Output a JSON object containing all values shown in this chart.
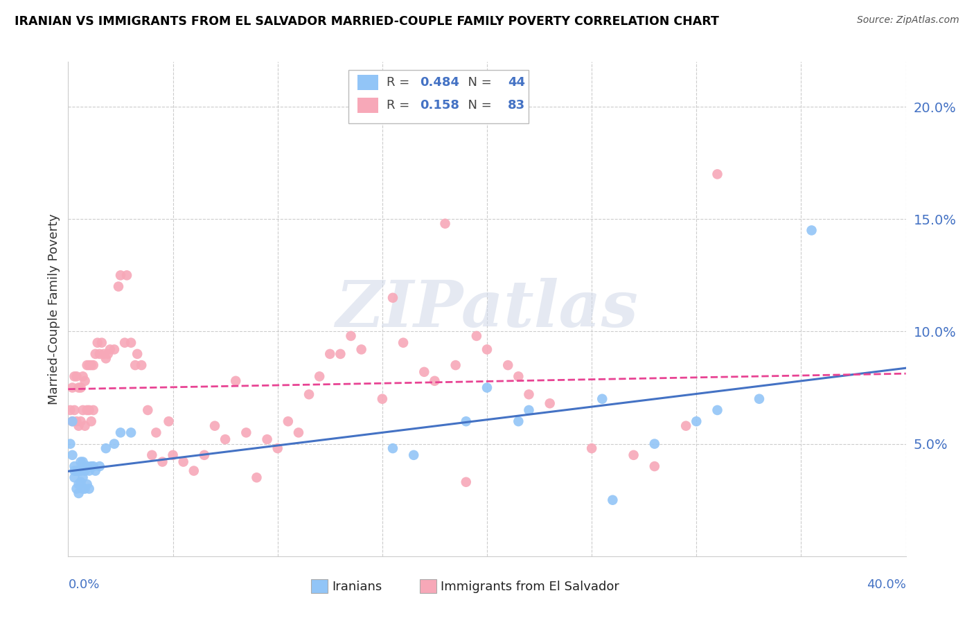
{
  "title": "IRANIAN VS IMMIGRANTS FROM EL SALVADOR MARRIED-COUPLE FAMILY POVERTY CORRELATION CHART",
  "source": "Source: ZipAtlas.com",
  "ylabel": "Married-Couple Family Poverty",
  "r1": "0.484",
  "n1": "44",
  "r2": "0.158",
  "n2": "83",
  "watermark": "ZIPatlas",
  "blue_color": "#92c5f7",
  "pink_color": "#f7a8b8",
  "blue_line_color": "#4472c4",
  "pink_line_color": "#e84393",
  "xmin": 0.0,
  "xmax": 0.4,
  "ymin": 0.0,
  "ymax": 0.22,
  "ytick_vals": [
    0.05,
    0.1,
    0.15,
    0.2
  ],
  "iranians_x": [
    0.001,
    0.002,
    0.002,
    0.003,
    0.003,
    0.003,
    0.004,
    0.004,
    0.005,
    0.005,
    0.005,
    0.006,
    0.006,
    0.006,
    0.007,
    0.007,
    0.007,
    0.008,
    0.008,
    0.009,
    0.009,
    0.01,
    0.01,
    0.011,
    0.012,
    0.013,
    0.015,
    0.018,
    0.022,
    0.025,
    0.03,
    0.155,
    0.165,
    0.19,
    0.2,
    0.215,
    0.22,
    0.255,
    0.26,
    0.28,
    0.3,
    0.31,
    0.33,
    0.355
  ],
  "iranians_y": [
    0.05,
    0.045,
    0.06,
    0.04,
    0.035,
    0.038,
    0.03,
    0.038,
    0.028,
    0.032,
    0.038,
    0.033,
    0.038,
    0.042,
    0.03,
    0.035,
    0.042,
    0.03,
    0.038,
    0.032,
    0.04,
    0.03,
    0.038,
    0.04,
    0.04,
    0.038,
    0.04,
    0.048,
    0.05,
    0.055,
    0.055,
    0.048,
    0.045,
    0.06,
    0.075,
    0.06,
    0.065,
    0.07,
    0.025,
    0.05,
    0.06,
    0.065,
    0.07,
    0.145
  ],
  "salvador_x": [
    0.001,
    0.002,
    0.002,
    0.003,
    0.003,
    0.004,
    0.004,
    0.005,
    0.005,
    0.006,
    0.006,
    0.007,
    0.007,
    0.008,
    0.008,
    0.009,
    0.009,
    0.01,
    0.01,
    0.011,
    0.011,
    0.012,
    0.012,
    0.013,
    0.014,
    0.015,
    0.016,
    0.017,
    0.018,
    0.019,
    0.02,
    0.022,
    0.024,
    0.025,
    0.027,
    0.028,
    0.03,
    0.032,
    0.033,
    0.035,
    0.038,
    0.04,
    0.042,
    0.045,
    0.048,
    0.05,
    0.055,
    0.06,
    0.065,
    0.07,
    0.075,
    0.08,
    0.085,
    0.09,
    0.095,
    0.1,
    0.105,
    0.11,
    0.115,
    0.12,
    0.125,
    0.13,
    0.135,
    0.14,
    0.15,
    0.155,
    0.16,
    0.17,
    0.175,
    0.18,
    0.185,
    0.19,
    0.195,
    0.2,
    0.21,
    0.215,
    0.22,
    0.23,
    0.25,
    0.27,
    0.28,
    0.295,
    0.31
  ],
  "salvador_y": [
    0.065,
    0.06,
    0.075,
    0.065,
    0.08,
    0.06,
    0.08,
    0.058,
    0.075,
    0.06,
    0.075,
    0.065,
    0.08,
    0.058,
    0.078,
    0.065,
    0.085,
    0.065,
    0.085,
    0.06,
    0.085,
    0.065,
    0.085,
    0.09,
    0.095,
    0.09,
    0.095,
    0.09,
    0.088,
    0.09,
    0.092,
    0.092,
    0.12,
    0.125,
    0.095,
    0.125,
    0.095,
    0.085,
    0.09,
    0.085,
    0.065,
    0.045,
    0.055,
    0.042,
    0.06,
    0.045,
    0.042,
    0.038,
    0.045,
    0.058,
    0.052,
    0.078,
    0.055,
    0.035,
    0.052,
    0.048,
    0.06,
    0.055,
    0.072,
    0.08,
    0.09,
    0.09,
    0.098,
    0.092,
    0.07,
    0.115,
    0.095,
    0.082,
    0.078,
    0.148,
    0.085,
    0.033,
    0.098,
    0.092,
    0.085,
    0.08,
    0.072,
    0.068,
    0.048,
    0.045,
    0.04,
    0.058,
    0.17
  ]
}
